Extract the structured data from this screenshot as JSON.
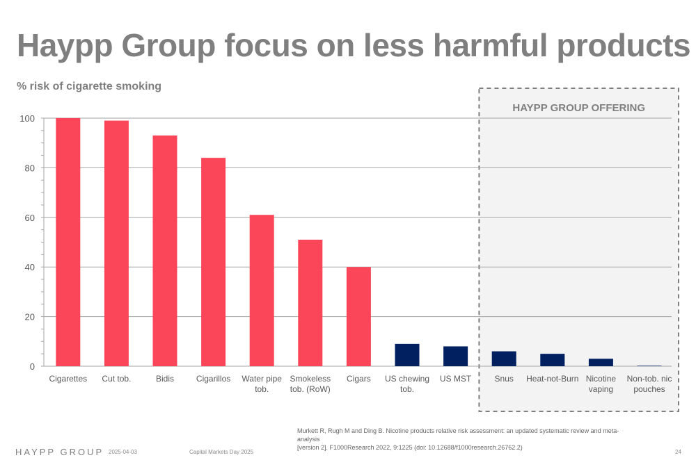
{
  "title": "Haypp Group focus on less harmful products",
  "subtitle": "% risk of cigarette smoking",
  "offering_label": "HAYPP GROUP OFFERING",
  "source_line1": "Murkett R, Rugh M and Ding B. Nicotine products relative risk assessment: an updated systematic review and meta-analysis",
  "source_line2": "[version 2]. F1000Research 2022, 9:1225 (doi: 10.12688/f1000research.26762.2)",
  "footer": {
    "logo": "HAYPP GROUP",
    "date": "2025-04-03",
    "event": "Capital Markets Day 2025",
    "page": "24"
  },
  "colors": {
    "combustible": "#fb465a",
    "haypp": "#002060",
    "axis_text": "#595959",
    "grid": "#a6a6a6",
    "offering_bg": "#f2f3f2",
    "offering_border": "#7f7f7f"
  },
  "chart_data": {
    "type": "bar",
    "title": "Haypp Group focus on less harmful products",
    "ylabel": "% risk of cigarette smoking",
    "ylim": [
      0,
      100
    ],
    "yticks": [
      0,
      20,
      40,
      60,
      80,
      100
    ],
    "grid": true,
    "categories": [
      [
        "Cigarettes"
      ],
      [
        "Cut tob."
      ],
      [
        "Bidis"
      ],
      [
        "Cigarillos"
      ],
      [
        "Water pipe",
        "tob."
      ],
      [
        "Smokeless",
        "tob. (RoW)"
      ],
      [
        "Cigars"
      ],
      [
        "US chewing",
        "tob."
      ],
      [
        "US MST"
      ],
      [
        "Snus"
      ],
      [
        "Heat-not-Burn"
      ],
      [
        "Nicotine",
        "vaping"
      ],
      [
        "Non-tob. nic",
        "pouches"
      ]
    ],
    "values": [
      100,
      99,
      93,
      84,
      61,
      51,
      40,
      9,
      8,
      6,
      5,
      3,
      0.2
    ],
    "bar_colors": [
      "combustible",
      "combustible",
      "combustible",
      "combustible",
      "combustible",
      "combustible",
      "combustible",
      "haypp",
      "haypp",
      "haypp",
      "haypp",
      "haypp",
      "haypp"
    ],
    "highlight_group": {
      "label": "HAYPP GROUP OFFERING",
      "categories": [
        "Snus",
        "Heat-not-Burn",
        "Nicotine vaping",
        "Non-tob. nic pouches"
      ]
    }
  }
}
